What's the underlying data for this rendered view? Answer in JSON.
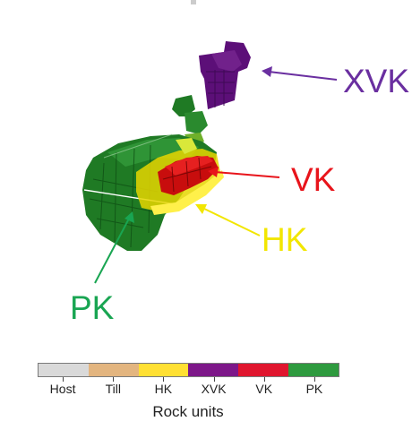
{
  "labels": {
    "xvk": {
      "text": "XVK",
      "color": "#6a2fa0"
    },
    "vk": {
      "text": "VK",
      "color": "#e8141b"
    },
    "hk": {
      "text": "HK",
      "color": "#f2e600"
    },
    "pk": {
      "text": "PK",
      "color": "#19a552"
    }
  },
  "legend": {
    "title": "Rock units",
    "units": [
      {
        "name": "Host",
        "color": "#d9d9d9"
      },
      {
        "name": "Till",
        "color": "#e3b57f"
      },
      {
        "name": "HK",
        "color": "#ffe033"
      },
      {
        "name": "XVK",
        "color": "#7d1789"
      },
      {
        "name": "VK",
        "color": "#e0152e"
      },
      {
        "name": "PK",
        "color": "#2e9a3e"
      }
    ]
  },
  "colors": {
    "xvk_body": "#5c0f78",
    "pk_body": "#1f7a24",
    "pk_dark": "#0f4f14",
    "vk_body": "#c80d0d",
    "hk_body": "#e6d600"
  }
}
